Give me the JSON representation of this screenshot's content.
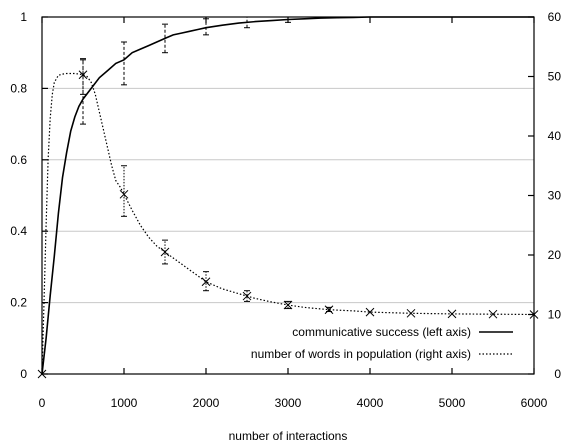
{
  "chart_data": {
    "type": "line",
    "xlabel": "number of interactions",
    "ylabel_left": "",
    "ylabel_right": "",
    "xlim": [
      0,
      6000
    ],
    "ylim_left": [
      0,
      1
    ],
    "ylim_right": [
      0,
      60
    ],
    "x_ticks": [
      0,
      1000,
      2000,
      3000,
      4000,
      5000,
      6000
    ],
    "y_left_ticks": [
      0,
      0.2,
      0.4,
      0.6,
      0.8,
      1
    ],
    "y_right_ticks": [
      0,
      10,
      20,
      30,
      40,
      50,
      60
    ],
    "grid": "horizontal",
    "legend_position": "bottom-right",
    "series": [
      {
        "name": "communicative success (left axis)",
        "axis": "left",
        "style": "solid",
        "x": [
          0,
          50,
          100,
          150,
          200,
          250,
          300,
          350,
          400,
          450,
          500,
          600,
          700,
          800,
          900,
          1000,
          1100,
          1200,
          1300,
          1400,
          1500,
          1600,
          1700,
          1800,
          1900,
          2000,
          2200,
          2400,
          2600,
          2800,
          3000,
          3200,
          3400,
          3600,
          3800,
          4000,
          4500,
          5000,
          5500,
          6000
        ],
        "values": [
          0,
          0.1,
          0.22,
          0.33,
          0.45,
          0.55,
          0.62,
          0.68,
          0.72,
          0.75,
          0.77,
          0.8,
          0.83,
          0.85,
          0.87,
          0.88,
          0.9,
          0.91,
          0.92,
          0.93,
          0.94,
          0.95,
          0.955,
          0.96,
          0.965,
          0.97,
          0.977,
          0.983,
          0.987,
          0.99,
          0.993,
          0.995,
          0.997,
          0.998,
          0.999,
          1.0,
          1.0,
          1.0,
          1.0,
          1.0
        ],
        "error_bars": [
          {
            "x": 500,
            "low": 0.7,
            "high": 0.88
          },
          {
            "x": 1000,
            "low": 0.81,
            "high": 0.93
          },
          {
            "x": 1500,
            "low": 0.9,
            "high": 0.98
          },
          {
            "x": 2000,
            "low": 0.95,
            "high": 0.995
          },
          {
            "x": 2500,
            "low": 0.97,
            "high": 1.0
          },
          {
            "x": 3000,
            "low": 0.985,
            "high": 1.0
          }
        ]
      },
      {
        "name": "number of words in population (right axis)",
        "axis": "right",
        "style": "dotted",
        "x": [
          0,
          25,
          50,
          75,
          100,
          125,
          150,
          200,
          250,
          300,
          350,
          400,
          450,
          500,
          550,
          600,
          650,
          700,
          750,
          800,
          850,
          900,
          950,
          1000,
          1100,
          1200,
          1300,
          1400,
          1500,
          1600,
          1700,
          1800,
          1900,
          2000,
          2200,
          2400,
          2500,
          2600,
          2800,
          3000,
          3200,
          3500,
          3800,
          4000,
          4500,
          5000,
          5500,
          6000
        ],
        "values": [
          0,
          12,
          25,
          36,
          43,
          47,
          49,
          50.2,
          50.4,
          50.5,
          50.5,
          50.5,
          50.4,
          50.3,
          50,
          49,
          47,
          44,
          41,
          38,
          35,
          32.5,
          31.5,
          30.2,
          27.5,
          25,
          23,
          21.5,
          20.5,
          19.5,
          18.5,
          17.5,
          16.5,
          15.5,
          14.3,
          13.5,
          13.1,
          12.7,
          12.1,
          11.6,
          11.2,
          10.8,
          10.6,
          10.4,
          10.2,
          10.1,
          10.05,
          10
        ],
        "markers": [
          {
            "x": 0,
            "y": 0
          },
          {
            "x": 500,
            "y": 50.3
          },
          {
            "x": 1000,
            "y": 30.2
          },
          {
            "x": 1500,
            "y": 20.5
          },
          {
            "x": 2000,
            "y": 15.5
          },
          {
            "x": 2500,
            "y": 13.1
          },
          {
            "x": 3000,
            "y": 11.6
          },
          {
            "x": 3500,
            "y": 10.8
          },
          {
            "x": 4000,
            "y": 10.4
          },
          {
            "x": 4500,
            "y": 10.2
          },
          {
            "x": 5000,
            "y": 10.1
          },
          {
            "x": 5500,
            "y": 10.05
          },
          {
            "x": 6000,
            "y": 10
          }
        ],
        "error_bars": [
          {
            "x": 500,
            "low": 47,
            "high": 53
          },
          {
            "x": 1000,
            "low": 26.5,
            "high": 35
          },
          {
            "x": 1500,
            "low": 18.5,
            "high": 22.5
          },
          {
            "x": 2000,
            "low": 14,
            "high": 17.2
          },
          {
            "x": 2500,
            "low": 12.2,
            "high": 14
          },
          {
            "x": 3000,
            "low": 11,
            "high": 12.2
          },
          {
            "x": 3500,
            "low": 10.5,
            "high": 11.2
          }
        ]
      }
    ]
  }
}
